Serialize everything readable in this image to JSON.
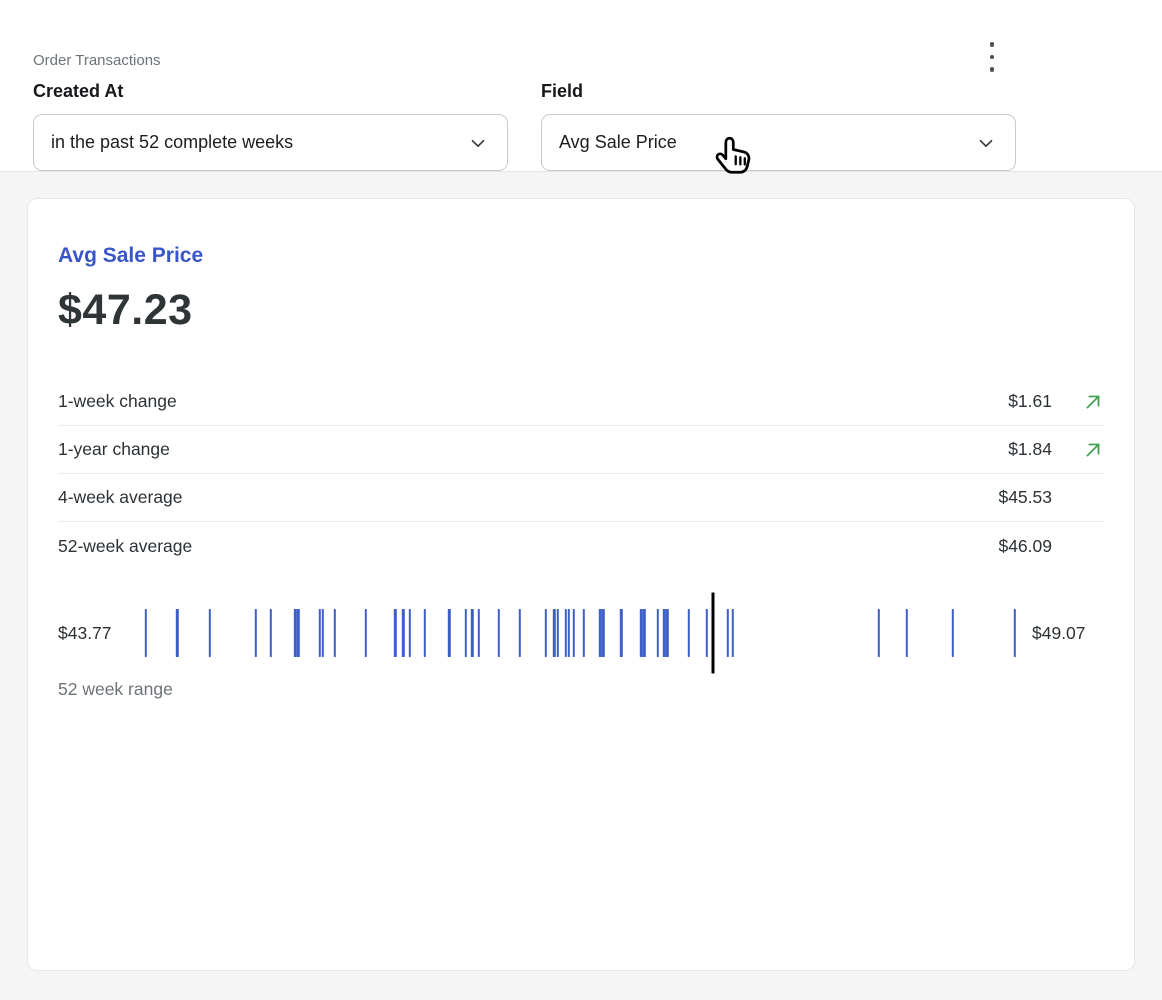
{
  "header": {
    "source_label": "Order Transactions",
    "filter_label": "Created At",
    "filter_value": "in the past 52 complete weeks",
    "field_label": "Field",
    "field_value": "Avg Sale Price",
    "menu_icon": "kebab-menu-icon"
  },
  "cursor_icon": "pointing-hand-cursor",
  "card": {
    "title": "Avg Sale Price",
    "current_value": "$47.23",
    "stats": [
      {
        "label": "1-week change",
        "value": "$1.61",
        "trend": "up"
      },
      {
        "label": "1-year change",
        "value": "$1.84",
        "trend": "up"
      },
      {
        "label": "4-week average",
        "value": "$45.53",
        "trend": null
      },
      {
        "label": "52-week average",
        "value": "$46.09",
        "trend": null
      }
    ],
    "range": {
      "min_label": "$43.77",
      "max_label": "$49.07",
      "caption": "52 week range"
    }
  },
  "chart_data": {
    "type": "strip",
    "title": "52 week range",
    "unit": "$",
    "min": 43.77,
    "max": 49.07,
    "current": 47.23,
    "values": [
      43.77,
      43.96,
      44.16,
      44.44,
      44.53,
      44.68,
      44.7,
      44.83,
      44.85,
      44.92,
      45.11,
      45.29,
      45.34,
      45.38,
      45.47,
      45.62,
      45.72,
      45.76,
      45.8,
      45.92,
      46.05,
      46.21,
      46.26,
      46.28,
      46.33,
      46.35,
      46.38,
      46.44,
      46.54,
      46.56,
      46.67,
      46.79,
      46.81,
      46.89,
      46.93,
      46.95,
      47.08,
      47.19,
      47.32,
      47.35,
      48.24,
      48.41,
      48.69,
      49.07
    ]
  },
  "colors": {
    "accent_blue": "#3956c8",
    "tick_blue": "#3e5fca",
    "positive_green": "#43a155",
    "current_black": "#000000"
  }
}
